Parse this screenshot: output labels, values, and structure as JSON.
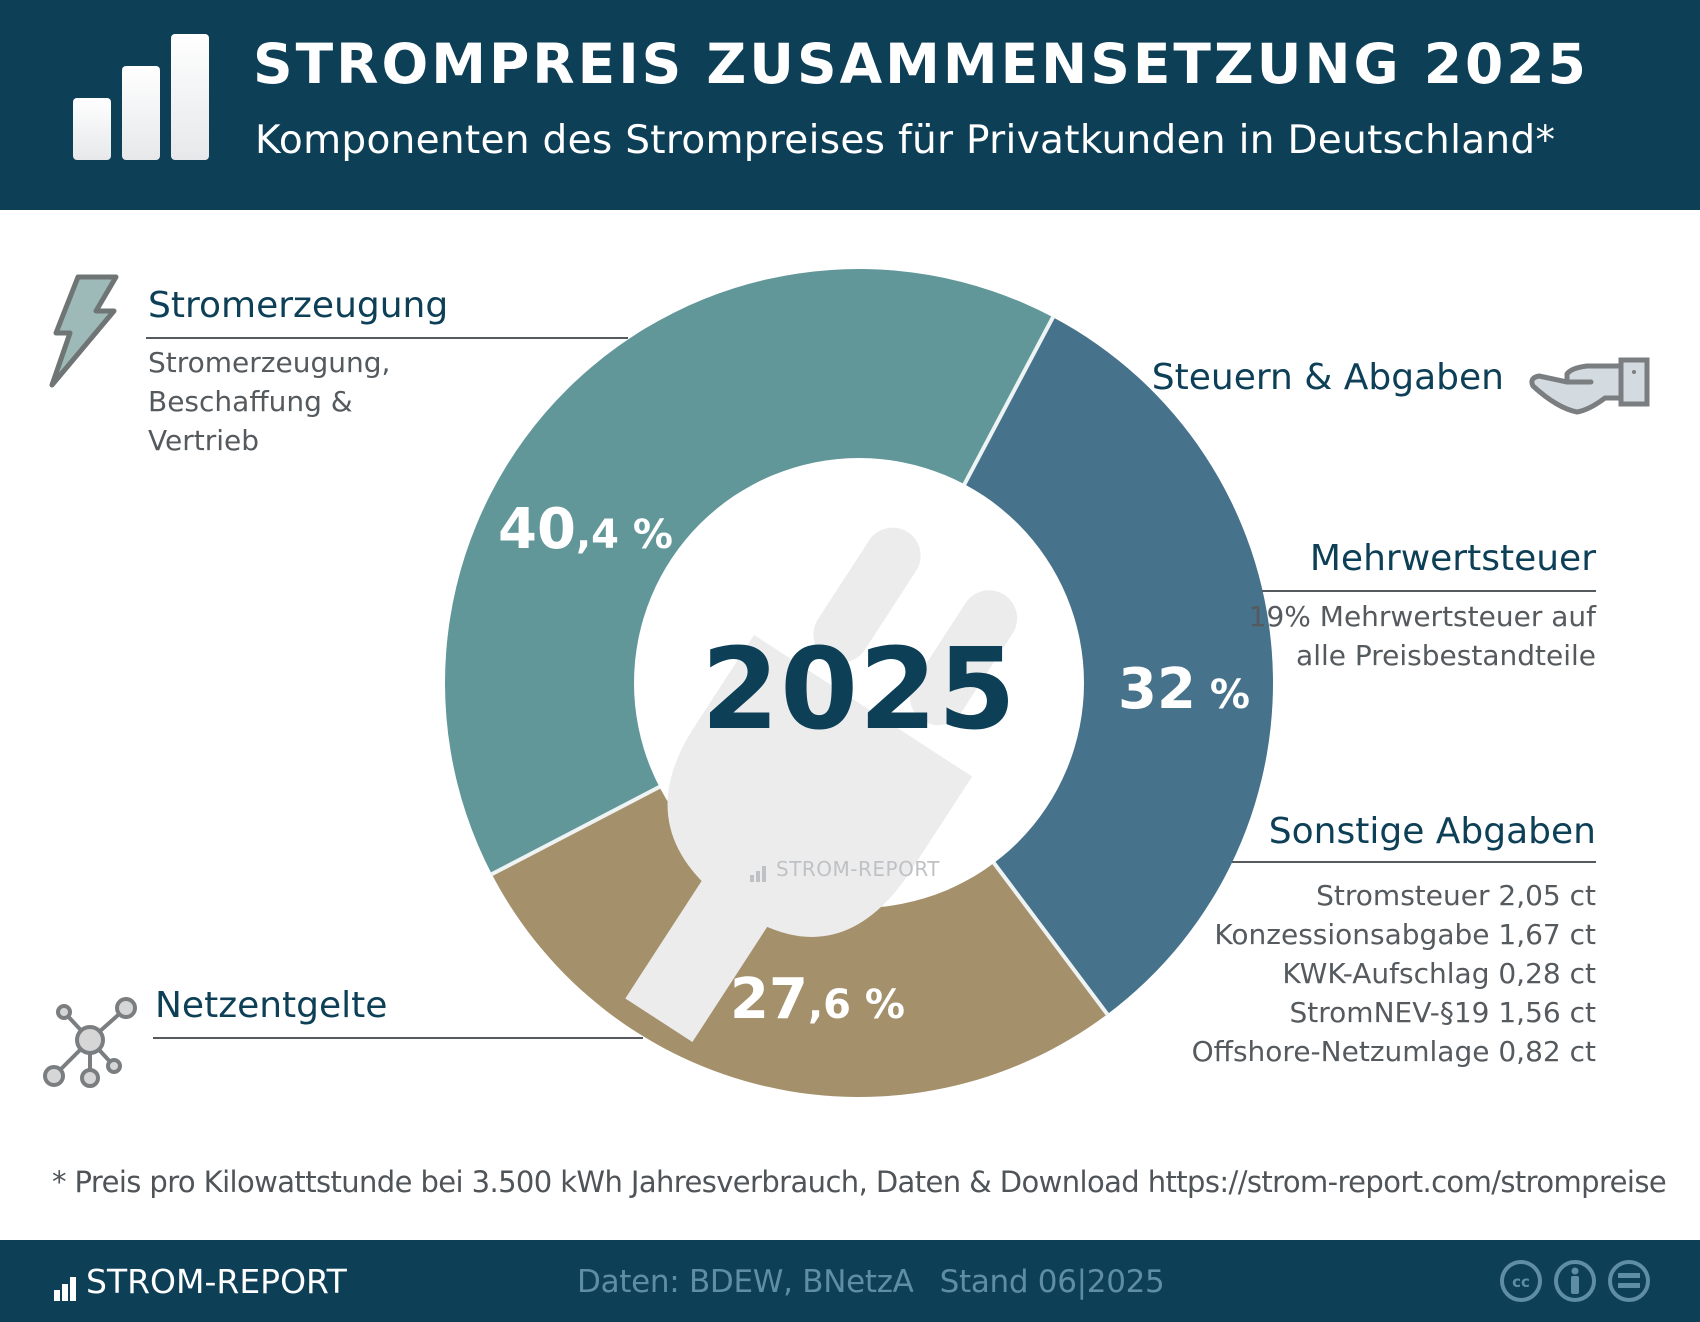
{
  "header": {
    "title": "STROMPREIS ZUSAMMENSETZUNG 2025",
    "subtitle": "Komponenten des Strompreises für Privatkunden in Deutschland*",
    "logo_icon": "bar-chart-icon"
  },
  "center": {
    "year": "2025",
    "watermark": "STROM-REPORT",
    "background_icon": "power-plug-icon"
  },
  "segments": [
    {
      "id": "stromerzeugung",
      "value_int": "40",
      "value_dec": ",4 %",
      "color": "#62979a"
    },
    {
      "id": "steuern",
      "value_int": "32",
      "value_dec": " %",
      "color": "#47728b"
    },
    {
      "id": "netzentgelte",
      "value_int": "27",
      "value_dec": ",6 %",
      "color": "#a4916b"
    }
  ],
  "categories": {
    "stromerzeugung": {
      "title": "Stromerzeugung",
      "desc_lines": [
        "Stromerzeugung,",
        "Beschaffung &",
        "Vertrieb"
      ],
      "icon": "lightning-bolt-icon"
    },
    "steuern": {
      "title": "Steuern & Abgaben",
      "icon": "open-hand-icon"
    },
    "mehrwertsteuer": {
      "title": "Mehrwertsteuer",
      "desc_lines": [
        "19% Mehrwertsteuer auf",
        "alle Preisbestandteile"
      ]
    },
    "sonstige": {
      "title": "Sonstige Abgaben",
      "items": [
        "Stromsteuer 2,05 ct",
        "Konzessionsabgabe 1,67 ct",
        "KWK-Aufschlag 0,28 ct",
        "StromNEV-§19 1,56 ct",
        "Offshore-Netzumlage 0,82 ct"
      ]
    },
    "netzentgelte": {
      "title": "Netzentgelte",
      "icon": "network-nodes-icon"
    }
  },
  "footnote": "* Preis pro Kilowattstunde bei 3.500 kWh Jahresverbrauch, Daten & Download https://strom-report.com/strompreise",
  "footer": {
    "brand": "STROM-REPORT",
    "source": "Daten: BDEW, BNetzA",
    "date": "Stand 06|2025",
    "license_icons": [
      "cc-icon",
      "by-attribution-icon",
      "nd-equals-icon"
    ]
  },
  "colors": {
    "header_bg": "#0d3f57",
    "title_text": "#0d3f57",
    "stromerzeugung": "#62979a",
    "steuern": "#47728b",
    "netzentgelte": "#a4916b",
    "footer_source_text": "#5f8ea4"
  },
  "chart_data": {
    "type": "pie",
    "variant": "donut",
    "title": "STROMPREIS ZUSAMMENSETZUNG 2025",
    "subtitle": "Komponenten des Strompreises für Privatkunden in Deutschland*",
    "center_label": "2025",
    "categories": [
      "Stromerzeugung",
      "Steuern & Abgaben",
      "Netzentgelte"
    ],
    "values": [
      40.4,
      32,
      27.6
    ],
    "unit": "%",
    "value_labels": [
      "40,4 %",
      "32 %",
      "27,6 %"
    ],
    "colors": [
      "#62979a",
      "#47728b",
      "#a4916b"
    ],
    "annotations": {
      "Stromerzeugung": "Stromerzeugung, Beschaffung & Vertrieb",
      "Mehrwertsteuer": "19% Mehrwertsteuer auf alle Preisbestandteile",
      "Sonstige Abgaben": [
        {
          "name": "Stromsteuer",
          "value_ct": 2.05
        },
        {
          "name": "Konzessionsabgabe",
          "value_ct": 1.67
        },
        {
          "name": "KWK-Aufschlag",
          "value_ct": 0.28
        },
        {
          "name": "StromNEV-§19",
          "value_ct": 1.56
        },
        {
          "name": "Offshore-Netzumlage",
          "value_ct": 0.82
        }
      ]
    },
    "legend": "none (labels placed beside segments)",
    "source": "Daten: BDEW, BNetzA",
    "date": "Stand 06|2025"
  }
}
